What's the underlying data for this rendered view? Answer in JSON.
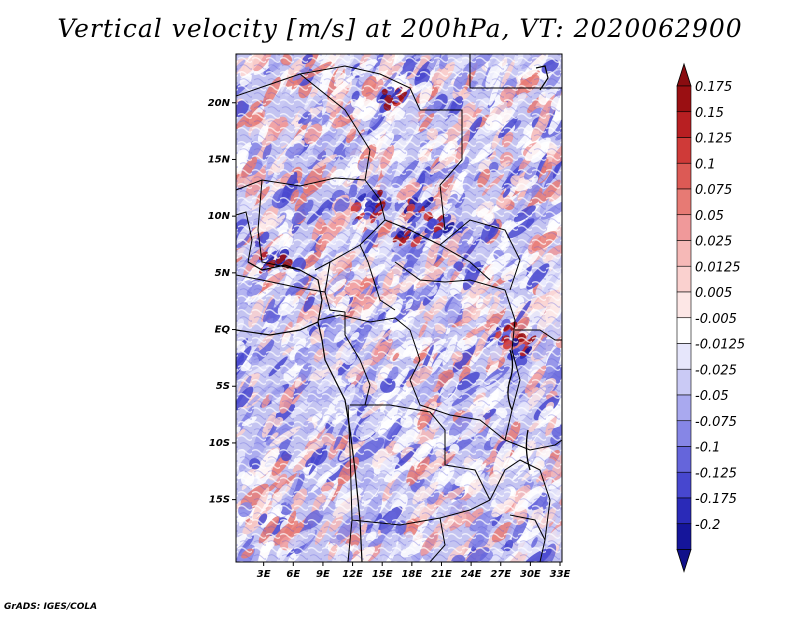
{
  "title": "Vertical velocity [m/s] at 200hPa, VT: 2020062900",
  "credit": "GrADS: IGES/COLA",
  "map": {
    "variable": "vertical velocity",
    "units": "m/s",
    "pressure_level": "200hPa",
    "valid_time": "2020062900",
    "lat_ticks": [
      {
        "value": 20,
        "label": "20N"
      },
      {
        "value": 15,
        "label": "15N"
      },
      {
        "value": 10,
        "label": "10N"
      },
      {
        "value": 5,
        "label": "5N"
      },
      {
        "value": 0,
        "label": "EQ"
      },
      {
        "value": -5,
        "label": "5S"
      },
      {
        "value": -10,
        "label": "10S"
      },
      {
        "value": -15,
        "label": "15S"
      }
    ],
    "lon_ticks": [
      {
        "value": 3,
        "label": "3E"
      },
      {
        "value": 6,
        "label": "6E"
      },
      {
        "value": 9,
        "label": "9E"
      },
      {
        "value": 12,
        "label": "12E"
      },
      {
        "value": 15,
        "label": "15E"
      },
      {
        "value": 18,
        "label": "18E"
      },
      {
        "value": 21,
        "label": "21E"
      },
      {
        "value": 24,
        "label": "24E"
      },
      {
        "value": 27,
        "label": "27E"
      },
      {
        "value": 30,
        "label": "30E"
      },
      {
        "value": 33,
        "label": "33E"
      }
    ]
  },
  "colorbar": {
    "levels": [
      {
        "label": "0.175",
        "color": "#9a0f12"
      },
      {
        "label": "0.15",
        "color": "#b81f22"
      },
      {
        "label": "0.125",
        "color": "#cf3a38"
      },
      {
        "label": "0.1",
        "color": "#dc5a55"
      },
      {
        "label": "0.075",
        "color": "#e77a74"
      },
      {
        "label": "0.05",
        "color": "#f0999a"
      },
      {
        "label": "0.025",
        "color": "#f6b9b7"
      },
      {
        "label": "0.0125",
        "color": "#fad1cf"
      },
      {
        "label": "0.005",
        "color": "#fde7e6"
      },
      {
        "label": "-0.005",
        "color": "#ffffff"
      },
      {
        "label": "-0.0125",
        "color": "#e6e6fb"
      },
      {
        "label": "-0.025",
        "color": "#cacaf5"
      },
      {
        "label": "-0.05",
        "color": "#a9a9ef"
      },
      {
        "label": "-0.075",
        "color": "#8686e6"
      },
      {
        "label": "-0.1",
        "color": "#6565db"
      },
      {
        "label": "-0.125",
        "color": "#4747cf"
      },
      {
        "label": "-0.175",
        "color": "#2a2ab8"
      },
      {
        "label": "-0.2",
        "color": "#15159a"
      }
    ],
    "over_color": "#8a0c10",
    "under_color": "#10108a"
  }
}
